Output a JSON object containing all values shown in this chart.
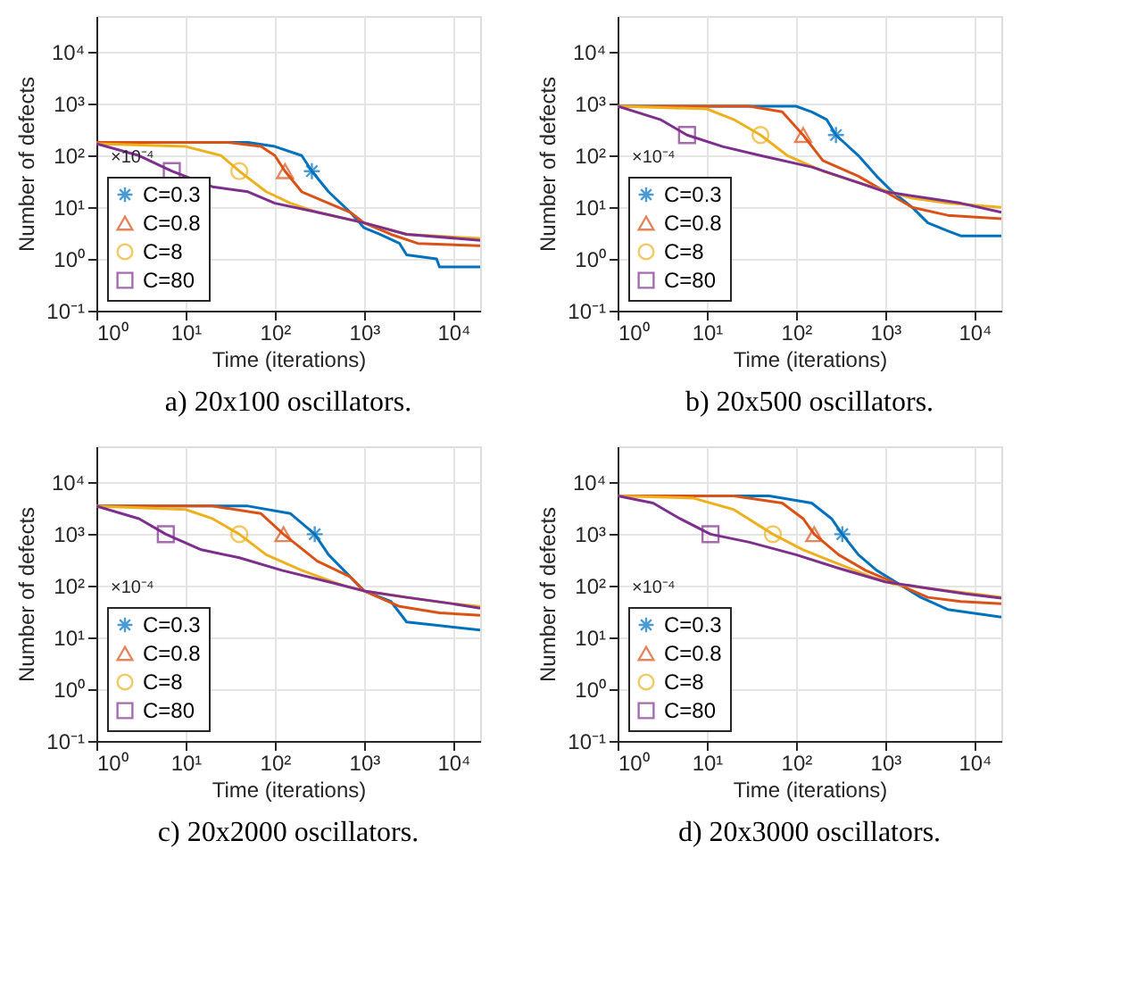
{
  "chart_data": [
    {
      "type": "line",
      "title": "a) 20x100 oscillators.",
      "xlabel": "Time (iterations)",
      "ylabel": "Number of defects",
      "log": "xy",
      "grid": true,
      "legend": "bottom left",
      "annotations": [
        "×10⁻⁴"
      ],
      "xlim": [
        1,
        20000
      ],
      "ylim": [
        0.1,
        50000
      ],
      "xticks": [
        {
          "value": 1,
          "label": "10⁰"
        },
        {
          "value": 10,
          "label": "10¹"
        },
        {
          "value": 100,
          "label": "10²"
        },
        {
          "value": 1000,
          "label": "10³"
        },
        {
          "value": 10000,
          "label": "10⁴"
        }
      ],
      "yticks": [
        {
          "value": 0.1,
          "label": "10⁻¹"
        },
        {
          "value": 1,
          "label": "10⁰"
        },
        {
          "value": 10,
          "label": "10¹"
        },
        {
          "value": 100,
          "label": "10²"
        },
        {
          "value": 1000,
          "label": "10³"
        },
        {
          "value": 10000,
          "label": "10⁴"
        }
      ],
      "series": [
        {
          "color": "#0072bd",
          "x": [
            1,
            50,
            100,
            200,
            260,
            400,
            700,
            1000,
            1500,
            2500,
            3000,
            6500,
            7000,
            20000
          ],
          "values": [
            180,
            180,
            150,
            100,
            50,
            20,
            8,
            4,
            3,
            2,
            1.2,
            1,
            0.7,
            0.7
          ]
        },
        {
          "color": "#d95319",
          "x": [
            1,
            30,
            70,
            100,
            130,
            200,
            400,
            700,
            1000,
            2000,
            4000,
            20000
          ],
          "values": [
            180,
            180,
            150,
            100,
            50,
            20,
            12,
            8,
            5,
            3,
            2,
            1.8
          ]
        },
        {
          "color": "#edb120",
          "x": [
            1,
            10,
            25,
            40,
            80,
            150,
            300,
            1000,
            3000,
            20000
          ],
          "values": [
            170,
            150,
            100,
            50,
            20,
            12,
            8,
            5,
            3,
            2.5
          ]
        },
        {
          "color": "#7e2f8e",
          "x": [
            1,
            3,
            7,
            20,
            50,
            100,
            300,
            1000,
            3000,
            20000
          ],
          "values": [
            170,
            100,
            50,
            25,
            20,
            12,
            8,
            5,
            3,
            2.3
          ]
        },
        {
          "type": "scatter",
          "name": "C=0.3",
          "color": "#0072bd",
          "marker": "cross",
          "x": [
            260
          ],
          "values": [
            50
          ]
        },
        {
          "type": "scatter",
          "name": "C=0.8",
          "color": "#d95319",
          "marker": "triangle",
          "x": [
            130
          ],
          "values": [
            50
          ]
        },
        {
          "type": "scatter",
          "name": "C=8",
          "color": "#edb120",
          "marker": "circle",
          "x": [
            40
          ],
          "values": [
            50
          ]
        },
        {
          "type": "scatter",
          "name": "C=80",
          "color": "#7e2f8e",
          "marker": "square",
          "x": [
            7
          ],
          "values": [
            50
          ]
        }
      ]
    },
    {
      "type": "line",
      "title": "b) 20x500 oscillators.",
      "xlabel": "Time (iterations)",
      "ylabel": "Number of defects",
      "log": "xy",
      "grid": true,
      "legend": "bottom left",
      "annotations": [
        "×10⁻⁴"
      ],
      "xlim": [
        1,
        20000
      ],
      "ylim": [
        0.1,
        50000
      ],
      "xticks": [
        {
          "value": 1,
          "label": "10⁰"
        },
        {
          "value": 10,
          "label": "10¹"
        },
        {
          "value": 100,
          "label": "10²"
        },
        {
          "value": 1000,
          "label": "10³"
        },
        {
          "value": 10000,
          "label": "10⁴"
        }
      ],
      "yticks": [
        {
          "value": 0.1,
          "label": "10⁻¹"
        },
        {
          "value": 1,
          "label": "10⁰"
        },
        {
          "value": 10,
          "label": "10¹"
        },
        {
          "value": 100,
          "label": "10²"
        },
        {
          "value": 1000,
          "label": "10³"
        },
        {
          "value": 10000,
          "label": "10⁴"
        }
      ],
      "series": [
        {
          "color": "#0072bd",
          "x": [
            1,
            100,
            150,
            220,
            280,
            500,
            800,
            1200,
            2000,
            3000,
            5000,
            7000,
            20000
          ],
          "values": [
            900,
            900,
            700,
            500,
            250,
            100,
            40,
            20,
            10,
            5,
            3.5,
            2.8,
            2.8
          ]
        },
        {
          "color": "#d95319",
          "x": [
            1,
            30,
            70,
            120,
            200,
            500,
            1000,
            2000,
            5000,
            20000
          ],
          "values": [
            900,
            900,
            700,
            250,
            80,
            40,
            20,
            10,
            7,
            6
          ]
        },
        {
          "color": "#edb120",
          "x": [
            1,
            10,
            20,
            40,
            80,
            200,
            700,
            2000,
            5000,
            20000
          ],
          "values": [
            900,
            800,
            500,
            250,
            100,
            50,
            25,
            15,
            12,
            10
          ]
        },
        {
          "color": "#7e2f8e",
          "x": [
            1,
            3,
            6,
            15,
            40,
            150,
            500,
            1000,
            3000,
            7000,
            20000
          ],
          "values": [
            900,
            500,
            250,
            150,
            100,
            60,
            30,
            20,
            15,
            12,
            8
          ]
        },
        {
          "type": "scatter",
          "name": "C=0.3",
          "color": "#0072bd",
          "marker": "cross",
          "x": [
            280
          ],
          "values": [
            250
          ]
        },
        {
          "type": "scatter",
          "name": "C=0.8",
          "color": "#d95319",
          "marker": "triangle",
          "x": [
            120
          ],
          "values": [
            250
          ]
        },
        {
          "type": "scatter",
          "name": "C=8",
          "color": "#edb120",
          "marker": "circle",
          "x": [
            40
          ],
          "values": [
            250
          ]
        },
        {
          "type": "scatter",
          "name": "C=80",
          "color": "#7e2f8e",
          "marker": "square",
          "x": [
            6
          ],
          "values": [
            250
          ]
        }
      ]
    },
    {
      "type": "line",
      "title": "c) 20x2000 oscillators.",
      "xlabel": "Time (iterations)",
      "ylabel": "Number of defects",
      "log": "xy",
      "grid": true,
      "legend": "bottom left",
      "annotations": [
        "×10⁻⁴"
      ],
      "xlim": [
        1,
        20000
      ],
      "ylim": [
        0.1,
        50000
      ],
      "xticks": [
        {
          "value": 1,
          "label": "10⁰"
        },
        {
          "value": 10,
          "label": "10¹"
        },
        {
          "value": 100,
          "label": "10²"
        },
        {
          "value": 1000,
          "label": "10³"
        },
        {
          "value": 10000,
          "label": "10⁴"
        }
      ],
      "yticks": [
        {
          "value": 0.1,
          "label": "10⁻¹"
        },
        {
          "value": 1,
          "label": "10⁰"
        },
        {
          "value": 10,
          "label": "10¹"
        },
        {
          "value": 100,
          "label": "10²"
        },
        {
          "value": 1000,
          "label": "10³"
        },
        {
          "value": 10000,
          "label": "10⁴"
        }
      ],
      "series": [
        {
          "color": "#0072bd",
          "x": [
            1,
            50,
            150,
            280,
            400,
            700,
            1000,
            2000,
            3000,
            7000,
            20000
          ],
          "values": [
            3500,
            3500,
            2500,
            1000,
            400,
            150,
            80,
            50,
            20,
            17,
            14
          ]
        },
        {
          "color": "#d95319",
          "x": [
            1,
            20,
            70,
            125,
            300,
            700,
            1000,
            2500,
            7000,
            20000
          ],
          "values": [
            3500,
            3500,
            2500,
            1000,
            300,
            150,
            80,
            40,
            30,
            27
          ]
        },
        {
          "color": "#edb120",
          "x": [
            1,
            10,
            20,
            40,
            80,
            200,
            600,
            1000,
            3000,
            10000,
            20000
          ],
          "values": [
            3500,
            3000,
            2000,
            1000,
            400,
            200,
            100,
            80,
            60,
            45,
            40
          ]
        },
        {
          "color": "#7e2f8e",
          "x": [
            1,
            3,
            6,
            15,
            40,
            120,
            400,
            1000,
            3000,
            10000,
            20000
          ],
          "values": [
            3500,
            2000,
            1000,
            500,
            350,
            200,
            120,
            80,
            60,
            45,
            37
          ]
        },
        {
          "type": "scatter",
          "name": "C=0.3",
          "color": "#0072bd",
          "marker": "cross",
          "x": [
            280
          ],
          "values": [
            1000
          ]
        },
        {
          "type": "scatter",
          "name": "C=0.8",
          "color": "#d95319",
          "marker": "triangle",
          "x": [
            125
          ],
          "values": [
            1000
          ]
        },
        {
          "type": "scatter",
          "name": "C=8",
          "color": "#edb120",
          "marker": "circle",
          "x": [
            40
          ],
          "values": [
            1000
          ]
        },
        {
          "type": "scatter",
          "name": "C=80",
          "color": "#7e2f8e",
          "marker": "square",
          "x": [
            6
          ],
          "values": [
            1000
          ]
        }
      ]
    },
    {
      "type": "line",
      "title": "d) 20x3000 oscillators.",
      "xlabel": "Time (iterations)",
      "ylabel": "Number of defects",
      "log": "xy",
      "grid": true,
      "legend": "bottom left",
      "annotations": [
        "×10⁻⁴"
      ],
      "xlim": [
        1,
        20000
      ],
      "ylim": [
        0.1,
        50000
      ],
      "xticks": [
        {
          "value": 1,
          "label": "10⁰"
        },
        {
          "value": 10,
          "label": "10¹"
        },
        {
          "value": 100,
          "label": "10²"
        },
        {
          "value": 1000,
          "label": "10³"
        },
        {
          "value": 10000,
          "label": "10⁴"
        }
      ],
      "yticks": [
        {
          "value": 0.1,
          "label": "10⁻¹"
        },
        {
          "value": 1,
          "label": "10⁰"
        },
        {
          "value": 10,
          "label": "10¹"
        },
        {
          "value": 100,
          "label": "10²"
        },
        {
          "value": 1000,
          "label": "10³"
        },
        {
          "value": 10000,
          "label": "10⁴"
        }
      ],
      "series": [
        {
          "color": "#0072bd",
          "x": [
            1,
            50,
            150,
            250,
            330,
            500,
            800,
            1300,
            2500,
            5000,
            20000
          ],
          "values": [
            5500,
            5500,
            4000,
            2000,
            1000,
            400,
            200,
            120,
            60,
            35,
            25
          ]
        },
        {
          "color": "#d95319",
          "x": [
            1,
            20,
            70,
            120,
            160,
            300,
            600,
            1200,
            3000,
            7000,
            20000
          ],
          "values": [
            5500,
            5500,
            4000,
            2000,
            1000,
            400,
            200,
            120,
            60,
            50,
            45
          ]
        },
        {
          "color": "#edb120",
          "x": [
            1,
            7,
            20,
            55,
            120,
            250,
            700,
            1200,
            3000,
            10000,
            20000
          ],
          "values": [
            5500,
            5000,
            3000,
            1000,
            500,
            300,
            150,
            110,
            90,
            70,
            60
          ]
        },
        {
          "color": "#7e2f8e",
          "x": [
            1,
            2.5,
            5,
            11,
            30,
            100,
            300,
            1000,
            3000,
            8000,
            20000
          ],
          "values": [
            5500,
            4000,
            2000,
            1000,
            700,
            400,
            220,
            120,
            90,
            70,
            58
          ]
        },
        {
          "type": "scatter",
          "name": "C=0.3",
          "color": "#0072bd",
          "marker": "cross",
          "x": [
            330
          ],
          "values": [
            1000
          ]
        },
        {
          "type": "scatter",
          "name": "C=0.8",
          "color": "#d95319",
          "marker": "triangle",
          "x": [
            160
          ],
          "values": [
            1000
          ]
        },
        {
          "type": "scatter",
          "name": "C=8",
          "color": "#edb120",
          "marker": "circle",
          "x": [
            55
          ],
          "values": [
            1000
          ]
        },
        {
          "type": "scatter",
          "name": "C=80",
          "color": "#7e2f8e",
          "marker": "square",
          "x": [
            11
          ],
          "values": [
            1000
          ]
        }
      ]
    }
  ]
}
